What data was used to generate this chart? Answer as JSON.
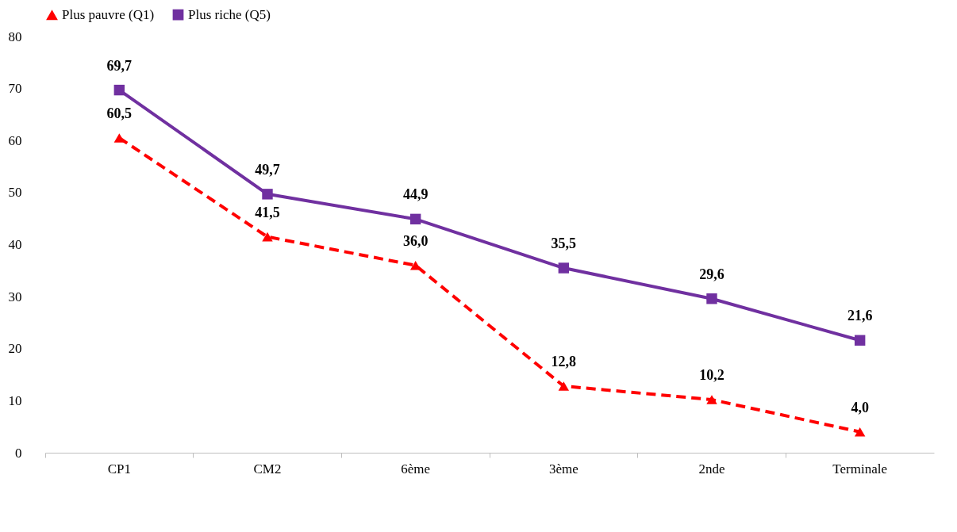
{
  "chart_data": {
    "type": "line",
    "categories": [
      "CP1",
      "CM2",
      "6ème",
      "3ème",
      "2nde",
      "Terminale"
    ],
    "series": [
      {
        "name": "Plus pauvre (Q1)",
        "color": "#ff0000",
        "line_style": "dashed",
        "marker": "triangle",
        "values": [
          60.5,
          41.5,
          36.0,
          12.8,
          10.2,
          4.0
        ],
        "value_labels": [
          "60,5",
          "41,5",
          "36,0",
          "12,8",
          "10,2",
          "4,0"
        ]
      },
      {
        "name": "Plus riche (Q5)",
        "color": "#7030a0",
        "line_style": "solid",
        "marker": "square",
        "values": [
          69.7,
          49.7,
          44.9,
          35.5,
          29.6,
          21.6
        ],
        "value_labels": [
          "69,7",
          "49,7",
          "44,9",
          "35,5",
          "29,6",
          "21,6"
        ]
      }
    ],
    "ylim": [
      0,
      80
    ],
    "yticks": [
      0,
      10,
      20,
      30,
      40,
      50,
      60,
      70,
      80
    ],
    "grid": false,
    "legend": "top"
  }
}
